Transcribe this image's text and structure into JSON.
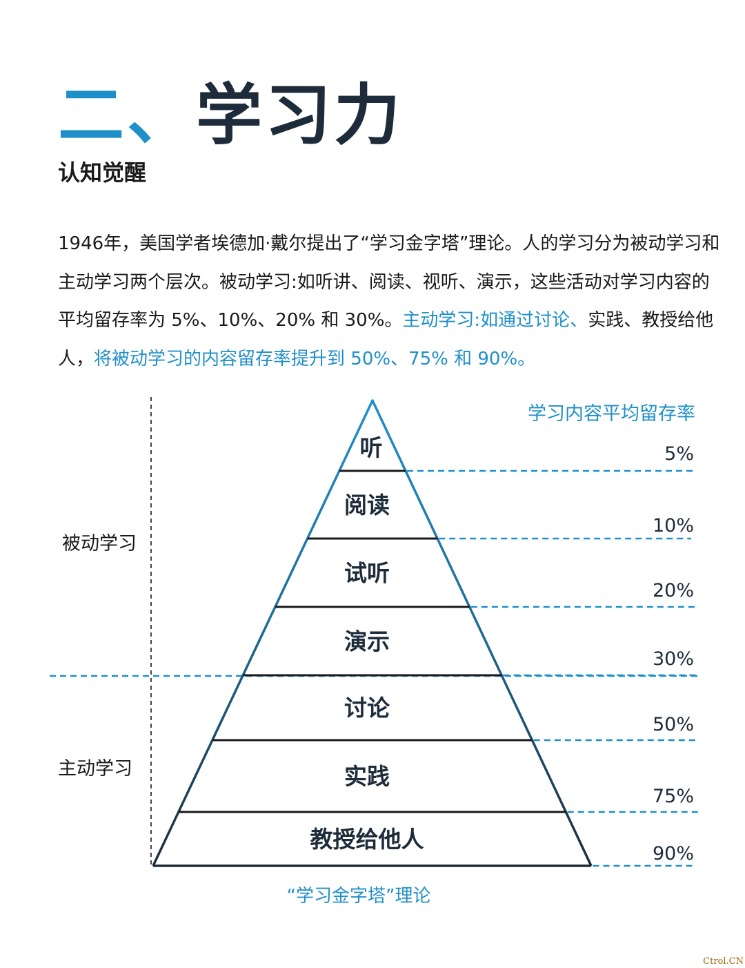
{
  "title": {
    "number": "二、",
    "text": "学习力"
  },
  "subtitle": "认知觉醒",
  "paragraph": {
    "normal_part": "1946年，美国学者埃德加·戴尔提出了“学习金字塔”理论。人的学习分为被动学习和主动学习两个层次。被动学习:如听讲、阅读、视听、演示，这些活动对学习内容的平均留存率为 5%、10%、20% 和 30%。",
    "highlight_part_1": "主动学习:如通过讨论、",
    "normal_part_2": "实践、教授给他人，",
    "highlight_part_2": "将被动学习的内容留存率提升到 50%、75% 和 90%。"
  },
  "pyramid": {
    "rate_header": "学习内容平均留存率",
    "passive_label": "被动学习",
    "active_label": "主动学习",
    "levels": [
      {
        "label": "听",
        "rate": "5%"
      },
      {
        "label": "阅读",
        "rate": "10%"
      },
      {
        "label": "试听",
        "rate": "20%"
      },
      {
        "label": "演示",
        "rate": "30%"
      },
      {
        "label": "讨论",
        "rate": "50%"
      },
      {
        "label": "实践",
        "rate": "75%"
      },
      {
        "label": "教授给他人",
        "rate": "90%"
      }
    ]
  },
  "caption": "“学习金字塔”理论",
  "watermark": "Ctrol.CN",
  "colors": {
    "accent": "#1f8fc9",
    "dark": "#1d2b3a",
    "text": "#1a1a1a"
  }
}
